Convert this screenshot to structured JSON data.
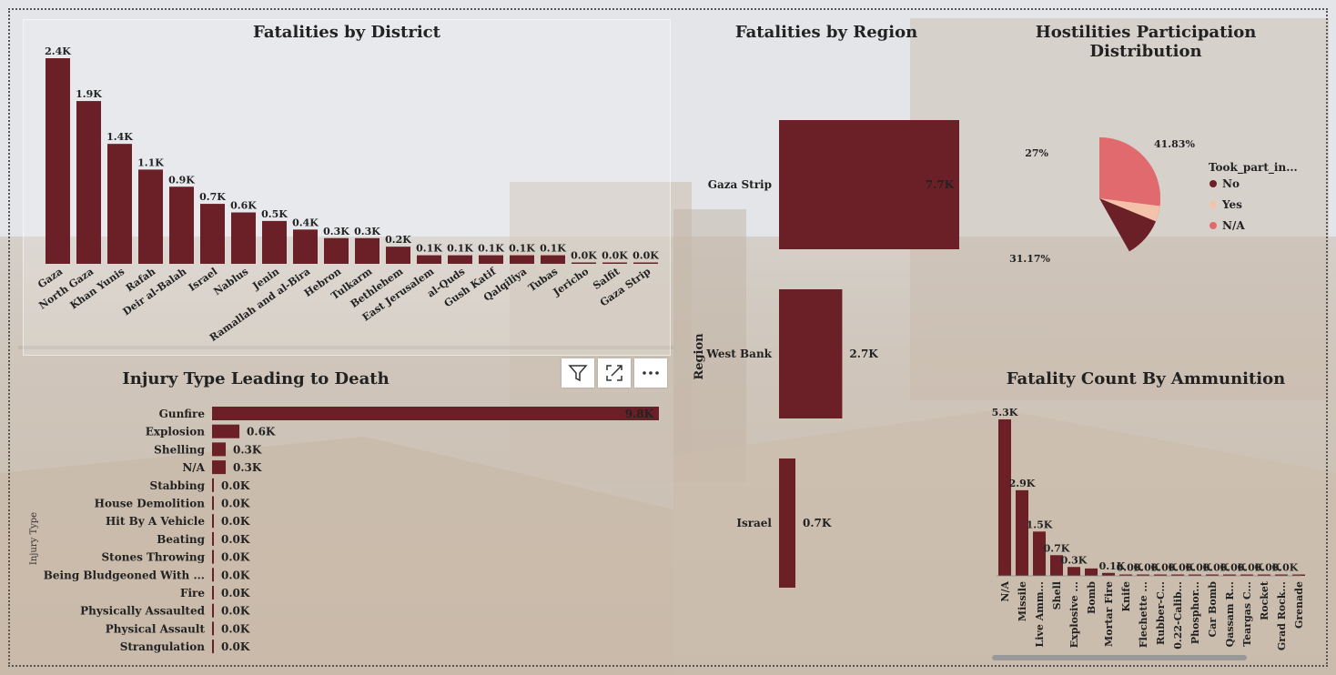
{
  "colors": {
    "bar": "#6b1f27",
    "pie_no": "#6b1f27",
    "pie_yes": "#f4c2aa",
    "pie_na": "#e06a6d"
  },
  "icons": {
    "filter": "filter-icon",
    "focus": "focus-mode-icon",
    "more": "more-options-icon"
  },
  "chart_data": [
    {
      "id": "district",
      "type": "bar",
      "title": "Fatalities by District",
      "categories": [
        "Gaza",
        "North Gaza",
        "Khan Yunis",
        "Rafah",
        "Deir al-Balah",
        "Israel",
        "Nablus",
        "Jenin",
        "Ramallah and al-Bira",
        "Hebron",
        "Tulkarm",
        "Bethlehem",
        "East Jerusalem",
        "al-Quds",
        "Gush Katif",
        "Qalqiliya",
        "Tubas",
        "Jericho",
        "Salfit",
        "Gaza Strip"
      ],
      "values": [
        2.4,
        1.9,
        1.4,
        1.1,
        0.9,
        0.7,
        0.6,
        0.5,
        0.4,
        0.3,
        0.3,
        0.2,
        0.1,
        0.1,
        0.1,
        0.1,
        0.1,
        0.0,
        0.0,
        0.0
      ],
      "labels": [
        "2.4K",
        "1.9K",
        "1.4K",
        "1.1K",
        "0.9K",
        "0.7K",
        "0.6K",
        "0.5K",
        "0.4K",
        "0.3K",
        "0.3K",
        "0.2K",
        "0.1K",
        "0.1K",
        "0.1K",
        "0.1K",
        "0.1K",
        "0.0K",
        "0.0K",
        "0.0K"
      ],
      "ylim": [
        0,
        2.4
      ]
    },
    {
      "id": "region",
      "type": "bar",
      "orientation": "horizontal",
      "title": "Fatalities by Region",
      "ylabel": "Region",
      "categories": [
        "Gaza Strip",
        "West Bank",
        "Israel"
      ],
      "values": [
        7.7,
        2.7,
        0.7
      ],
      "labels": [
        "7.7K",
        "2.7K",
        "0.7K"
      ],
      "xlim": [
        0,
        7.7
      ]
    },
    {
      "id": "hostilities",
      "type": "pie",
      "title": "Hostilities Participation Distribution",
      "legend_title": "Took_part_in...",
      "legend_position": "right",
      "slices": [
        {
          "name": "No",
          "value": 41.83,
          "label": "41.83%"
        },
        {
          "name": "Yes",
          "value": 31.17,
          "label": "31.17%"
        },
        {
          "name": "N/A",
          "value": 27,
          "label": "27%"
        }
      ]
    },
    {
      "id": "injury",
      "type": "bar",
      "orientation": "horizontal",
      "title": "Injury Type Leading to Death",
      "ylabel": "Injury Type",
      "categories": [
        "Gunfire",
        "Explosion",
        "Shelling",
        "N/A",
        "Stabbing",
        "House Demolition",
        "Hit By A Vehicle",
        "Beating",
        "Stones Throwing",
        "Being Bludgeoned With ...",
        "Fire",
        "Physically Assaulted",
        "Physical Assault",
        "Strangulation"
      ],
      "values": [
        9.8,
        0.6,
        0.3,
        0.3,
        0.04,
        0.02,
        0.02,
        0.01,
        0.01,
        0.01,
        0.01,
        0.005,
        0.005,
        0.005
      ],
      "labels": [
        "9.8K",
        "0.6K",
        "0.3K",
        "0.3K",
        "0.0K",
        "0.0K",
        "0.0K",
        "0.0K",
        "0.0K",
        "0.0K",
        "0.0K",
        "0.0K",
        "0.0K",
        "0.0K"
      ],
      "xlim": [
        0,
        9.8
      ]
    },
    {
      "id": "ammunition",
      "type": "bar",
      "title": "Fatality Count By Ammunition",
      "categories": [
        "N/A",
        "Missile",
        "Live Amm...",
        "Shell",
        "Explosive ...",
        "Bomb",
        "Mortar Fire",
        "Knife",
        "Flechette ...",
        "Rubber-C...",
        "0.22-Calib...",
        "Phosphor...",
        "Car Bomb",
        "Qassam R...",
        "Teargas C...",
        "Rocket",
        "Grad Rock...",
        "Grenade"
      ],
      "values": [
        5.3,
        2.9,
        1.5,
        0.7,
        0.3,
        0.25,
        0.1,
        0.03,
        0.02,
        0.02,
        0.01,
        0.01,
        0.01,
        0.01,
        0.01,
        0.01,
        0.01,
        0.01
      ],
      "labels": [
        "5.3K",
        "2.9K",
        "1.5K",
        "0.7K",
        "0.3K",
        "",
        "0.1K",
        "0.0K",
        "0.0K",
        "0.0K",
        "0.0K",
        "0.0K",
        "0.0K",
        "0.0K",
        "0.0K",
        "0.0K",
        "0.0K",
        ""
      ],
      "ylim": [
        0,
        5.3
      ]
    }
  ]
}
